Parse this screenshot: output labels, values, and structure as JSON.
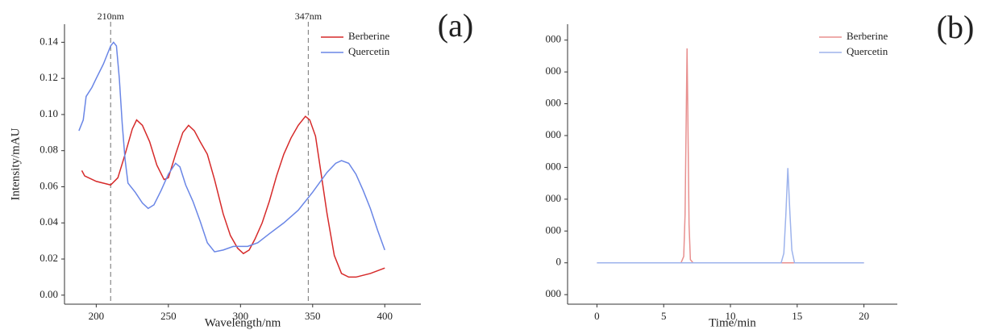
{
  "chart_data": [
    {
      "type": "line",
      "panel_label": "(a)",
      "x_label": "Wavelength/nm",
      "y_label": "Intensity/mAU",
      "xlim": [
        178,
        425
      ],
      "ylim": [
        -0.005,
        0.15
      ],
      "xticks": [
        200,
        250,
        300,
        350,
        400
      ],
      "yticks": [
        {
          "value": 0,
          "label": "0.00"
        },
        0.02,
        0.04,
        0.06,
        0.08,
        {
          "value": 0.1,
          "label": "0.10"
        },
        0.12,
        0.14
      ],
      "legend": "top-right",
      "annotations": [
        {
          "x": 210,
          "label": "210nm"
        },
        {
          "x": 347,
          "label": "347nm"
        }
      ],
      "series": [
        {
          "name": "Berberine",
          "color": "#d62a2a",
          "x": [
            190,
            192,
            200,
            205,
            210,
            215,
            220,
            225,
            228,
            232,
            237,
            242,
            247,
            250,
            255,
            260,
            264,
            268,
            272,
            277,
            282,
            288,
            293,
            298,
            302,
            306,
            310,
            315,
            320,
            325,
            330,
            335,
            340,
            345,
            348,
            352,
            355,
            360,
            365,
            370,
            375,
            380,
            390,
            400
          ],
          "values": [
            0.069,
            0.066,
            0.063,
            0.062,
            0.061,
            0.065,
            0.078,
            0.092,
            0.097,
            0.094,
            0.085,
            0.072,
            0.064,
            0.065,
            0.078,
            0.09,
            0.094,
            0.091,
            0.085,
            0.078,
            0.064,
            0.045,
            0.033,
            0.026,
            0.023,
            0.025,
            0.031,
            0.04,
            0.052,
            0.066,
            0.078,
            0.087,
            0.094,
            0.099,
            0.097,
            0.088,
            0.072,
            0.045,
            0.022,
            0.012,
            0.01,
            0.01,
            0.012,
            0.015
          ]
        },
        {
          "name": "Quercetin",
          "color": "#6a86e6",
          "x": [
            188,
            191,
            193,
            197,
            200,
            205,
            210,
            212,
            214,
            216,
            218,
            220,
            222,
            227,
            232,
            236,
            240,
            245,
            250,
            255,
            258,
            262,
            267,
            272,
            277,
            282,
            288,
            295,
            305,
            312,
            320,
            330,
            340,
            350,
            360,
            366,
            370,
            375,
            380,
            385,
            390,
            395,
            400
          ],
          "values": [
            0.091,
            0.097,
            0.11,
            0.115,
            0.12,
            0.128,
            0.138,
            0.14,
            0.138,
            0.12,
            0.095,
            0.075,
            0.062,
            0.057,
            0.051,
            0.048,
            0.05,
            0.058,
            0.067,
            0.073,
            0.071,
            0.061,
            0.052,
            0.041,
            0.029,
            0.024,
            0.025,
            0.027,
            0.027,
            0.029,
            0.034,
            0.04,
            0.047,
            0.057,
            0.068,
            0.073,
            0.0745,
            0.073,
            0.067,
            0.058,
            0.048,
            0.036,
            0.025
          ]
        }
      ]
    },
    {
      "type": "line",
      "panel_label": "(b)",
      "x_label": "Time/min",
      "xlim": [
        -2.2,
        22.5
      ],
      "ylim": [
        -1300,
        7500
      ],
      "xticks": [
        0,
        5,
        10,
        15,
        20
      ],
      "yticks": [
        {
          "value": -1000,
          "label": "000"
        },
        0,
        {
          "value": 1000,
          "label": "000"
        },
        {
          "value": 2000,
          "label": "000"
        },
        {
          "value": 3000,
          "label": "000"
        },
        {
          "value": 4000,
          "label": "000"
        },
        {
          "value": 5000,
          "label": "000"
        },
        {
          "value": 6000,
          "label": "000"
        },
        {
          "value": 7000,
          "label": "000"
        }
      ],
      "legend": "top-right",
      "series": [
        {
          "name": "Berberine",
          "color": "#e8908f",
          "x": [
            0,
            6.3,
            6.5,
            6.6,
            6.7,
            6.75,
            6.8,
            6.9,
            7.0,
            7.2,
            20
          ],
          "values": [
            0,
            0,
            200,
            1500,
            5000,
            6740,
            5000,
            1200,
            100,
            0,
            0
          ]
        },
        {
          "name": "Quercetin",
          "color": "#9db3ec",
          "x": [
            0,
            13.8,
            14.0,
            14.15,
            14.3,
            14.45,
            14.6,
            14.8,
            20
          ],
          "values": [
            0,
            0,
            300,
            1500,
            2980,
            1600,
            400,
            0,
            0
          ]
        }
      ]
    }
  ]
}
